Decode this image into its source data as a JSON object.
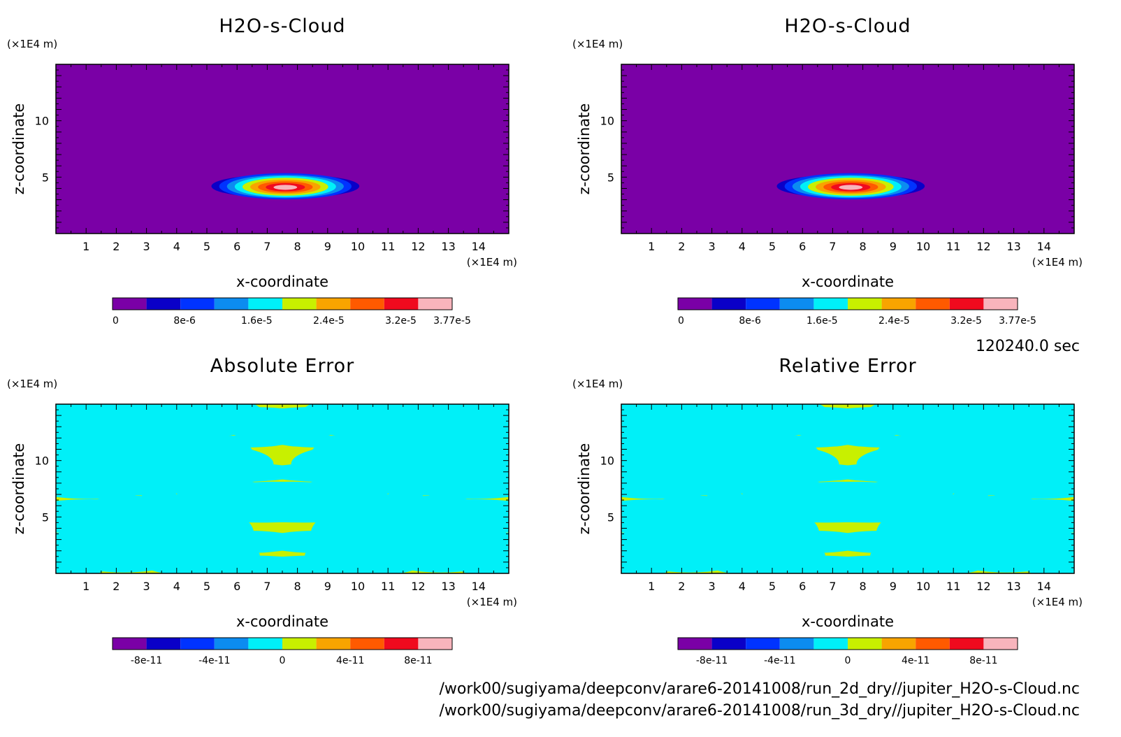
{
  "time_label": "120240.0 sec",
  "files": [
    "/work00/sugiyama/deepconv/arare6-20141008/run_2d_dry//jupiter_H2O-s-Cloud.nc",
    "/work00/sugiyama/deepconv/arare6-20141008/run_3d_dry//jupiter_H2O-s-Cloud.nc"
  ],
  "colorbar_colors": [
    "#7a00a6",
    "#0a00c8",
    "#0033ff",
    "#0c8cf0",
    "#00f0f8",
    "#c8f000",
    "#f8a400",
    "#ff5a00",
    "#f00a1e",
    "#f8b4bc"
  ],
  "chart_data": [
    {
      "type": "heatmap",
      "title": "H2O-s-Cloud",
      "xlabel": "x-coordinate",
      "ylabel": "z-coordinate",
      "x_unit": "(×1E4 m)",
      "y_unit": "(×1E4 m)",
      "xlim": [
        0,
        15
      ],
      "ylim": [
        0,
        15
      ],
      "x_ticks": [
        "1",
        "2",
        "3",
        "4",
        "5",
        "6",
        "7",
        "8",
        "9",
        "10",
        "11",
        "12",
        "13",
        "14"
      ],
      "y_ticks": [
        "5",
        "10"
      ],
      "colorbar_labels": [
        "0",
        "8e-6",
        "1.6e-5",
        "2.4e-5",
        "3.2e-5",
        "3.77e-5"
      ],
      "value_range": [
        0,
        3.77e-05
      ],
      "feature": {
        "center_x": 7.6,
        "center_z": 4.2,
        "extent_x": [
          5.1,
          10.0
        ],
        "extent_z": [
          2.9,
          5.5
        ]
      }
    },
    {
      "type": "heatmap",
      "title": "H2O-s-Cloud",
      "xlabel": "x-coordinate",
      "ylabel": "z-coordinate",
      "x_unit": "(×1E4 m)",
      "y_unit": "(×1E4 m)",
      "xlim": [
        0,
        15
      ],
      "ylim": [
        0,
        15
      ],
      "x_ticks": [
        "1",
        "2",
        "3",
        "4",
        "5",
        "6",
        "7",
        "8",
        "9",
        "10",
        "11",
        "12",
        "13",
        "14"
      ],
      "y_ticks": [
        "5",
        "10"
      ],
      "colorbar_labels": [
        "0",
        "8e-6",
        "1.6e-5",
        "2.4e-5",
        "3.2e-5",
        "3.77e-5"
      ],
      "value_range": [
        0,
        3.77e-05
      ],
      "feature": {
        "center_x": 7.6,
        "center_z": 4.2,
        "extent_x": [
          5.1,
          10.0
        ],
        "extent_z": [
          2.9,
          5.5
        ]
      }
    },
    {
      "type": "heatmap",
      "title": "Absolute Error",
      "xlabel": "x-coordinate",
      "ylabel": "z-coordinate",
      "x_unit": "(×1E4 m)",
      "y_unit": "(×1E4 m)",
      "xlim": [
        0,
        15
      ],
      "ylim": [
        0,
        15
      ],
      "x_ticks": [
        "1",
        "2",
        "3",
        "4",
        "5",
        "6",
        "7",
        "8",
        "9",
        "10",
        "11",
        "12",
        "13",
        "14"
      ],
      "y_ticks": [
        "5",
        "10"
      ],
      "colorbar_labels": [
        "-8e-11",
        "-4e-11",
        "0",
        "4e-11",
        "8e-11"
      ],
      "value_range": [
        -1e-10,
        1e-10
      ]
    },
    {
      "type": "heatmap",
      "title": "Relative Error",
      "xlabel": "x-coordinate",
      "ylabel": "z-coordinate",
      "x_unit": "(×1E4 m)",
      "y_unit": "(×1E4 m)",
      "xlim": [
        0,
        15
      ],
      "ylim": [
        0,
        15
      ],
      "x_ticks": [
        "1",
        "2",
        "3",
        "4",
        "5",
        "6",
        "7",
        "8",
        "9",
        "10",
        "11",
        "12",
        "13",
        "14"
      ],
      "y_ticks": [
        "5",
        "10"
      ],
      "colorbar_labels": [
        "-8e-11",
        "-4e-11",
        "0",
        "4e-11",
        "8e-11"
      ],
      "value_range": [
        -1e-10,
        1e-10
      ]
    }
  ]
}
